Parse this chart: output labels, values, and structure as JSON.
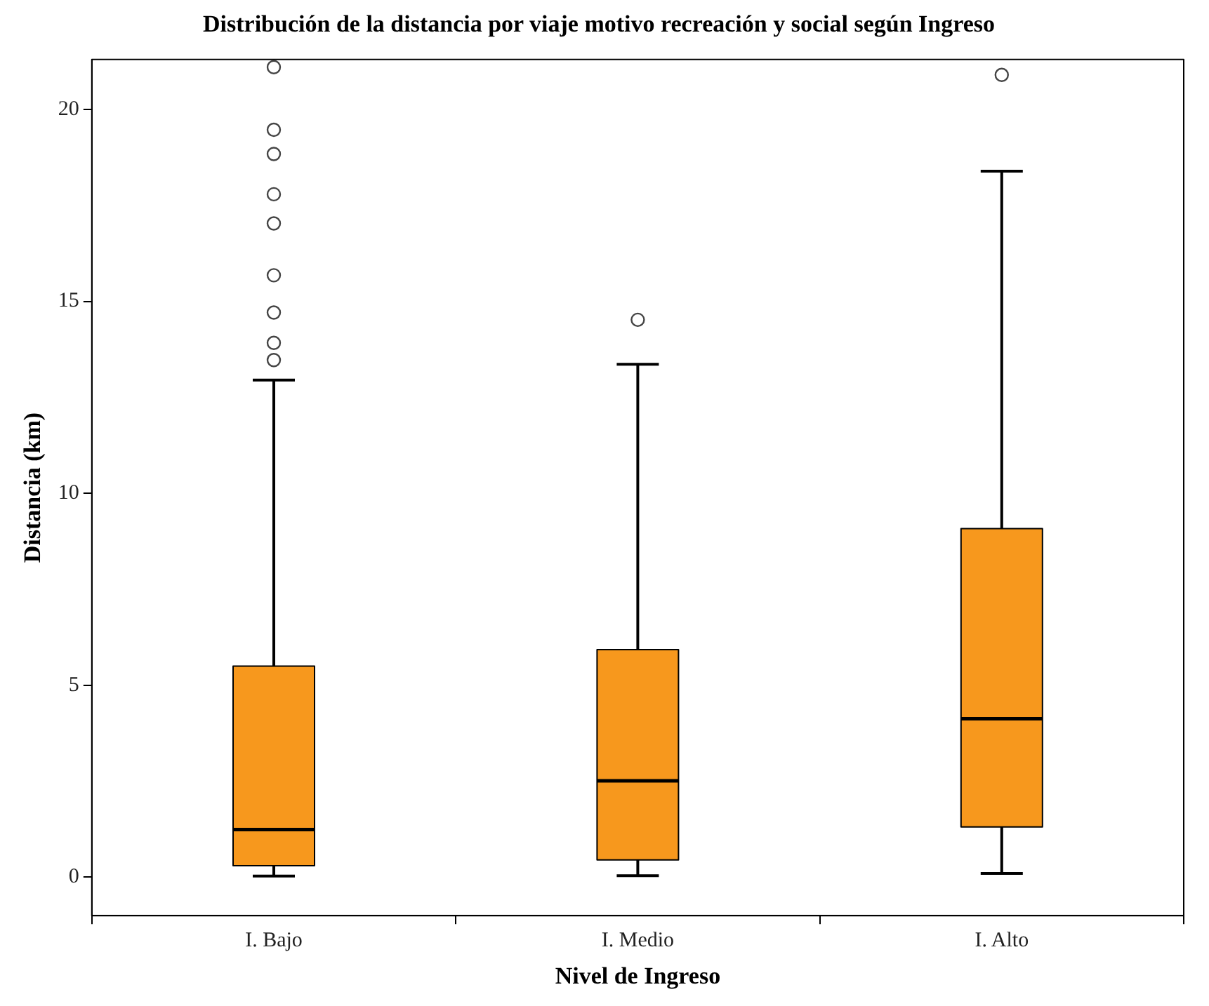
{
  "chart_data": {
    "type": "box",
    "title": "Distribución de la distancia por viaje motivo recreación y social según Ingreso",
    "xlabel": "Nivel de Ingreso",
    "ylabel": "Distancia (km)",
    "categories": [
      "I. Bajo",
      "I. Medio",
      "I. Alto"
    ],
    "color": "#f7981d",
    "boxes": [
      {
        "low": 0.03,
        "q1": 0.3,
        "median": 1.24,
        "q3": 5.5,
        "high": 12.95,
        "outliers": [
          13.47,
          13.92,
          14.71,
          15.68,
          17.03,
          17.79,
          18.84,
          19.47,
          21.1
        ]
      },
      {
        "low": 0.04,
        "q1": 0.45,
        "median": 2.51,
        "q3": 5.93,
        "high": 13.36,
        "outliers": [
          14.52
        ]
      },
      {
        "low": 0.1,
        "q1": 1.31,
        "median": 4.13,
        "q3": 9.08,
        "high": 18.39,
        "outliers": [
          20.9
        ]
      }
    ],
    "ylim": [
      -1,
      21.3
    ],
    "yticks": [
      0,
      5,
      10,
      15,
      20
    ],
    "grid": false,
    "legend": false
  }
}
